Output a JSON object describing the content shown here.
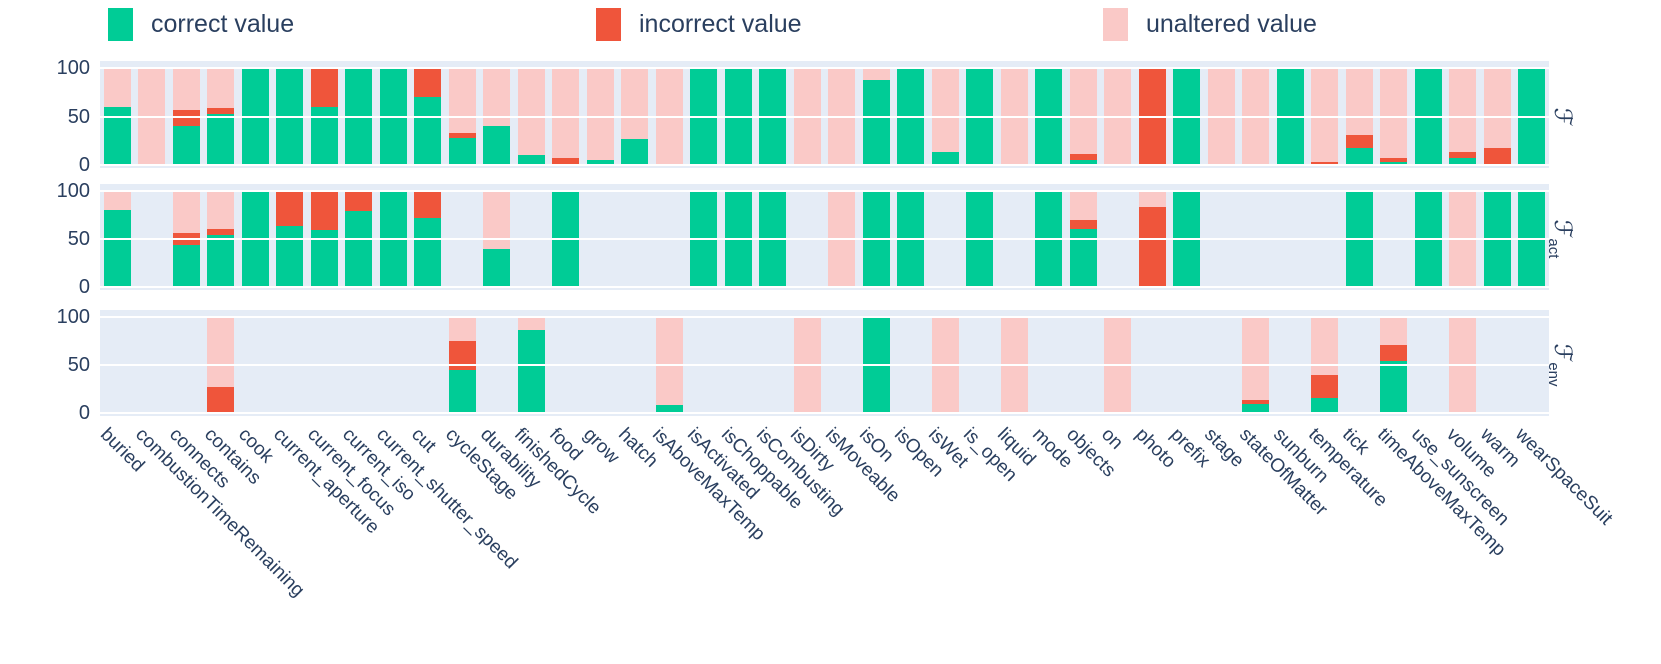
{
  "colors": {
    "correct": "#00cc96",
    "incorrect": "#ef553b",
    "unaltered": "#fac9c7",
    "panel_background": "#e5ecf6",
    "grid": "#ffffff",
    "text": "#2a3f5f"
  },
  "legend": {
    "items": [
      {
        "label": "correct value",
        "color": "#00cc96"
      },
      {
        "label": "incorrect value",
        "color": "#ef553b"
      },
      {
        "label": "unaltered value",
        "color": "#fac9c7"
      }
    ]
  },
  "side_labels": [
    {
      "f": "ℱ",
      "sub": ""
    },
    {
      "f": "ℱ",
      "sub": "act"
    },
    {
      "f": "ℱ",
      "sub": "env"
    }
  ],
  "chart_data": {
    "type": "bar",
    "stacked": true,
    "orientation": "vertical",
    "ylim": [
      0,
      100
    ],
    "yticks": [
      100,
      50,
      0
    ],
    "grid": true,
    "legend_position": "top",
    "subplot_row_labels": [
      "ℱ",
      "ℱ_act",
      "ℱ_env"
    ],
    "categories": [
      "buried",
      "combustionTimeRemaining",
      "connects",
      "contains",
      "cook",
      "current_aperture",
      "current_focus",
      "current_iso",
      "current_shutter_speed",
      "cut",
      "cycleStage",
      "durability",
      "finishedCycle",
      "food",
      "grow",
      "hatch",
      "isAboveMaxTemp",
      "isActivated",
      "isChoppable",
      "isCombusting",
      "isDirty",
      "isMoveable",
      "isOn",
      "isOpen",
      "isWet",
      "is_open",
      "liquid",
      "mode",
      "objects",
      "on",
      "photo",
      "prefix",
      "stage",
      "stateOfMatter",
      "sunburn",
      "temperature",
      "tick",
      "timeAboveMaxTemp",
      "use_sunscreen",
      "volume",
      "warm",
      "wearSpaceSuit"
    ],
    "panels": [
      {
        "name": "F",
        "series": [
          {
            "name": "correct value",
            "key": "correct",
            "values": [
              60,
              0,
              40,
              53,
              100,
              100,
              60,
              100,
              100,
              70,
              28,
              40,
              10,
              0,
              5,
              27,
              0,
              100,
              100,
              100,
              0,
              0,
              88,
              100,
              13,
              100,
              0,
              100,
              5,
              0,
              0,
              100,
              0,
              0,
              100,
              0,
              18,
              3,
              100,
              7,
              0,
              100
            ]
          },
          {
            "name": "incorrect value",
            "key": "incorrect",
            "values": [
              0,
              0,
              17,
              6,
              0,
              0,
              40,
              0,
              0,
              30,
              5,
              0,
              0,
              7,
              0,
              0,
              0,
              0,
              0,
              0,
              0,
              0,
              0,
              0,
              0,
              0,
              0,
              0,
              6,
              0,
              100,
              0,
              0,
              0,
              0,
              3,
              13,
              4,
              0,
              6,
              18,
              0
            ]
          },
          {
            "name": "unaltered value",
            "key": "unaltered",
            "values": [
              40,
              100,
              43,
              41,
              0,
              0,
              0,
              0,
              0,
              0,
              67,
              60,
              90,
              93,
              95,
              73,
              100,
              0,
              0,
              0,
              100,
              100,
              12,
              0,
              87,
              0,
              100,
              0,
              89,
              100,
              0,
              0,
              100,
              100,
              0,
              97,
              69,
              93,
              0,
              87,
              82,
              0
            ]
          }
        ]
      },
      {
        "name": "F_act",
        "series": [
          {
            "name": "correct value",
            "key": "correct",
            "values": [
              80,
              0,
              44,
              54,
              100,
              64,
              59,
              79,
              100,
              72,
              0,
              40,
              0,
              100,
              0,
              0,
              0,
              100,
              100,
              100,
              0,
              0,
              100,
              100,
              0,
              100,
              0,
              100,
              60,
              0,
              0,
              100,
              0,
              0,
              0,
              0,
              100,
              0,
              100,
              0,
              100,
              100
            ]
          },
          {
            "name": "incorrect value",
            "key": "incorrect",
            "values": [
              0,
              0,
              12,
              6,
              0,
              36,
              41,
              21,
              0,
              28,
              0,
              0,
              0,
              0,
              0,
              0,
              0,
              0,
              0,
              0,
              0,
              0,
              0,
              0,
              0,
              0,
              0,
              0,
              10,
              0,
              83,
              0,
              0,
              0,
              0,
              0,
              0,
              0,
              0,
              0,
              0,
              0
            ]
          },
          {
            "name": "unaltered value",
            "key": "unaltered",
            "values": [
              20,
              0,
              44,
              40,
              0,
              0,
              0,
              0,
              0,
              0,
              0,
              60,
              0,
              0,
              0,
              0,
              0,
              0,
              0,
              0,
              0,
              100,
              0,
              0,
              0,
              0,
              0,
              0,
              30,
              0,
              17,
              0,
              0,
              0,
              0,
              0,
              0,
              0,
              0,
              100,
              0,
              0
            ]
          }
        ]
      },
      {
        "name": "F_env",
        "series": [
          {
            "name": "correct value",
            "key": "correct",
            "values": [
              0,
              0,
              0,
              0,
              0,
              0,
              0,
              0,
              0,
              0,
              45,
              0,
              86,
              0,
              0,
              0,
              8,
              0,
              0,
              0,
              0,
              0,
              100,
              0,
              0,
              0,
              0,
              0,
              0,
              0,
              0,
              0,
              0,
              9,
              0,
              16,
              0,
              54,
              0,
              0,
              0,
              0
            ]
          },
          {
            "name": "incorrect value",
            "key": "incorrect",
            "values": [
              0,
              0,
              0,
              27,
              0,
              0,
              0,
              0,
              0,
              0,
              30,
              0,
              0,
              0,
              0,
              0,
              0,
              0,
              0,
              0,
              0,
              0,
              0,
              0,
              0,
              0,
              0,
              0,
              0,
              0,
              0,
              0,
              0,
              5,
              0,
              24,
              0,
              17,
              0,
              0,
              0,
              0
            ]
          },
          {
            "name": "unaltered value",
            "key": "unaltered",
            "values": [
              0,
              0,
              0,
              73,
              0,
              0,
              0,
              0,
              0,
              0,
              25,
              0,
              14,
              0,
              0,
              0,
              92,
              0,
              0,
              0,
              100,
              0,
              0,
              0,
              100,
              0,
              100,
              0,
              0,
              100,
              0,
              0,
              0,
              86,
              0,
              60,
              0,
              29,
              0,
              100,
              0,
              0
            ]
          }
        ]
      }
    ]
  }
}
